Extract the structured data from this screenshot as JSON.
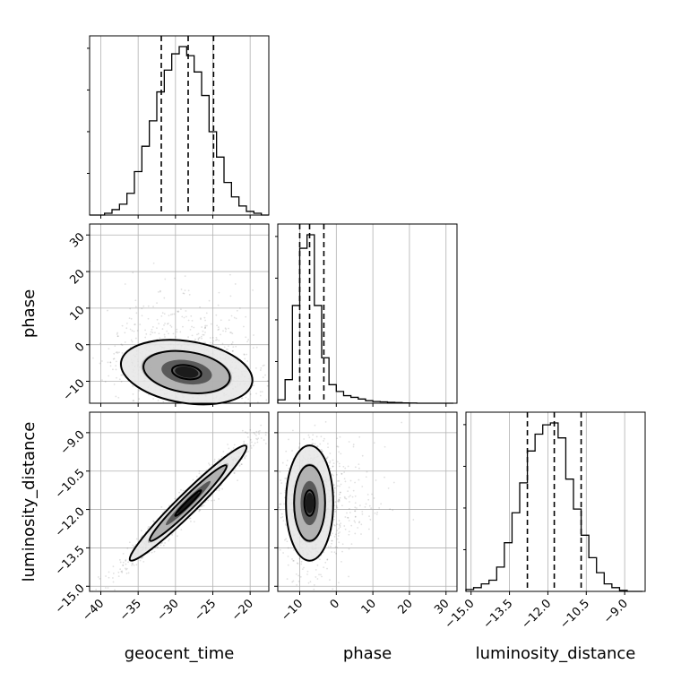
{
  "chart_data": {
    "type": "corner",
    "parameters": [
      {
        "name": "geocent_time",
        "label": "geocent_time",
        "range": [
          -41.5,
          -17.5
        ],
        "ticks": [
          -40,
          -35,
          -30,
          -25,
          -20
        ],
        "tick_labels": [
          "−40",
          "−35",
          "−30",
          "−25",
          "−20"
        ],
        "quantiles": [
          -31.9,
          -28.3,
          -24.9
        ],
        "histogram": {
          "bin_edges": [
            -41.5,
            -40.5,
            -39.5,
            -38.5,
            -37.5,
            -36.5,
            -35.5,
            -34.5,
            -33.5,
            -32.5,
            -31.5,
            -30.5,
            -29.5,
            -28.5,
            -27.5,
            -26.5,
            -25.5,
            -24.5,
            -23.5,
            -22.5,
            -21.5,
            -20.5,
            -19.5,
            -18.5,
            -17.5
          ],
          "counts": [
            0.0,
            0.0,
            0.01,
            0.03,
            0.06,
            0.12,
            0.24,
            0.38,
            0.52,
            0.68,
            0.8,
            0.89,
            0.93,
            0.88,
            0.79,
            0.66,
            0.46,
            0.32,
            0.18,
            0.1,
            0.05,
            0.02,
            0.01,
            0.0
          ]
        }
      },
      {
        "name": "phase",
        "label": "phase",
        "range": [
          -16,
          33
        ],
        "ticks": [
          -10,
          0,
          10,
          20,
          30
        ],
        "tick_labels": [
          "−10",
          "0",
          "10",
          "20",
          "30"
        ],
        "quantiles": [
          -10.0,
          -7.3,
          -3.4
        ],
        "histogram": {
          "bin_edges": [
            -16,
            -14,
            -12,
            -10,
            -8,
            -6,
            -4,
            -2,
            0,
            2,
            4,
            6,
            8,
            10,
            12,
            14,
            16,
            18,
            20,
            22,
            24,
            26,
            28,
            30,
            32
          ],
          "counts": [
            0.02,
            0.14,
            0.58,
            0.92,
            1.0,
            0.58,
            0.27,
            0.11,
            0.07,
            0.045,
            0.035,
            0.025,
            0.015,
            0.01,
            0.008,
            0.005,
            0.004,
            0.002,
            0.001,
            0.0,
            0.0,
            0.0,
            0.0,
            0.0
          ]
        }
      },
      {
        "name": "luminosity_distance",
        "label": "luminosity_distance",
        "range": [
          -15.2,
          -8.2
        ],
        "ticks": [
          -15.0,
          -13.5,
          -12.0,
          -10.5,
          -9.0
        ],
        "tick_labels": [
          "−15.0",
          "−13.5",
          "−12.0",
          "−10.5",
          "−9.0"
        ],
        "quantiles": [
          -12.8,
          -11.75,
          -10.7
        ],
        "histogram": {
          "bin_edges": [
            -15.2,
            -14.9,
            -14.6,
            -14.3,
            -14.0,
            -13.7,
            -13.4,
            -13.1,
            -12.8,
            -12.5,
            -12.2,
            -11.9,
            -11.6,
            -11.3,
            -11.0,
            -10.7,
            -10.4,
            -10.1,
            -9.8,
            -9.5,
            -9.2,
            -8.9,
            -8.6,
            -8.3
          ],
          "counts": [
            0.01,
            0.02,
            0.04,
            0.06,
            0.13,
            0.26,
            0.42,
            0.58,
            0.75,
            0.84,
            0.89,
            0.9,
            0.82,
            0.6,
            0.44,
            0.3,
            0.18,
            0.1,
            0.04,
            0.02,
            0.005,
            0.0,
            0.0
          ]
        }
      }
    ],
    "pairs": [
      {
        "x": 0,
        "y": 1,
        "mean": [
          -28.5,
          -7.5
        ],
        "sd": [
          4.5,
          4.5
        ],
        "corr": -0.25
      },
      {
        "x": 0,
        "y": 2,
        "mean": [
          -28.3,
          -11.75
        ],
        "sd": [
          4.0,
          1.15
        ],
        "corr": 0.97
      },
      {
        "x": 1,
        "y": 2,
        "mean": [
          -7.3,
          -11.75
        ],
        "sd": [
          3.3,
          1.15
        ],
        "corr": 0.0
      }
    ],
    "contour_levels": [
      0.12,
      0.4,
      0.9
    ],
    "grid": true
  }
}
